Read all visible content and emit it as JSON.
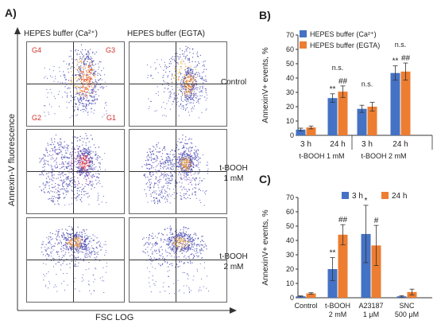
{
  "panelA": {
    "label": "A)",
    "col_headers": [
      "HEPES buffer (Ca²⁺)",
      "HEPES buffer (EGTA)"
    ],
    "row_labels": [
      {
        "line1": "Control",
        "line2": ""
      },
      {
        "line1": "t-BOOH",
        "line2": "1 mM"
      },
      {
        "line1": "t-BOOH",
        "line2": "2 mM"
      }
    ],
    "y_axis_label": "Annexin-V fluorescence",
    "x_axis_label": "FSC  LOG",
    "gates": {
      "G4": "G4",
      "G3": "G3",
      "G2": "G2",
      "G1": "G1"
    }
  },
  "chart_data": [
    {
      "panel": "B)",
      "type": "bar",
      "ylabel": "AnnexinV+ events, %",
      "ylim": [
        0,
        70
      ],
      "yticks": [
        0,
        10,
        20,
        30,
        40,
        50,
        60,
        70
      ],
      "grid": false,
      "legend_position": "top-left",
      "series": [
        {
          "name": "HEPES buffer (Ca²⁺)",
          "color": "#4472c4",
          "values": [
            4,
            26,
            18.5,
            43.5
          ],
          "errors": [
            1,
            3,
            2.5,
            5
          ]
        },
        {
          "name": "HEPES buffer (EGTA)",
          "color": "#ed7d31",
          "values": [
            5.5,
            30.5,
            20,
            44.5
          ],
          "errors": [
            1,
            4,
            3,
            6
          ]
        }
      ],
      "categories": [
        "3 h",
        "24 h",
        "3 h",
        "24 h"
      ],
      "groups": [
        {
          "label": "t-BOOH 1 mM",
          "categories": [
            0,
            1
          ]
        },
        {
          "label": "t-BOOH 2 mM",
          "categories": [
            2,
            3
          ]
        }
      ],
      "annotations": [
        {
          "category": 1,
          "series": 0,
          "text": "**"
        },
        {
          "category": 1,
          "series": 1,
          "text": "##"
        },
        {
          "category": 1,
          "series": "pair",
          "text": "n.s."
        },
        {
          "category": 2,
          "series": "pair",
          "text": "n.s."
        },
        {
          "category": 3,
          "series": 0,
          "text": "**"
        },
        {
          "category": 3,
          "series": 1,
          "text": "##"
        },
        {
          "category": 3,
          "series": "pair",
          "text": "n.s."
        }
      ]
    },
    {
      "panel": "C)",
      "type": "bar",
      "ylabel": "AnnexinV+ events, %",
      "ylim": [
        0,
        70
      ],
      "yticks": [
        0,
        10,
        20,
        30,
        40,
        50,
        60,
        70
      ],
      "grid": false,
      "legend_position": "top-center",
      "series": [
        {
          "name": "3 h",
          "color": "#4472c4",
          "values": [
            1,
            20,
            44.5,
            1
          ],
          "errors": [
            0.3,
            8,
            20,
            0.5
          ]
        },
        {
          "name": "24 h",
          "color": "#ed7d31",
          "values": [
            3,
            44,
            36.5,
            4
          ],
          "errors": [
            0.5,
            7,
            14,
            2
          ]
        }
      ],
      "categories": [
        {
          "line1": "Control",
          "line2": ""
        },
        {
          "line1": "t-BOOH",
          "line2": "2 mM"
        },
        {
          "line1": "A23187",
          "line2": "1 μM"
        },
        {
          "line1": "SNC",
          "line2": "500 μM"
        }
      ],
      "annotations": [
        {
          "category": 1,
          "series": 0,
          "text": "**"
        },
        {
          "category": 1,
          "series": 1,
          "text": "##"
        },
        {
          "category": 2,
          "series": 0,
          "text": "*"
        },
        {
          "category": 2,
          "series": 1,
          "text": "#"
        }
      ]
    }
  ]
}
